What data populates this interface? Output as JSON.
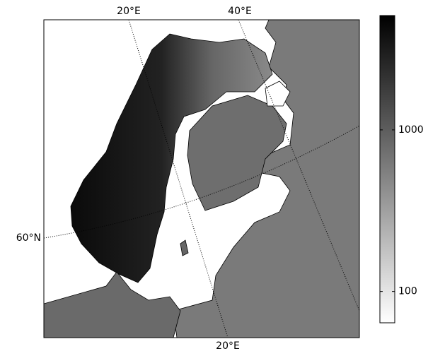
{
  "map": {
    "top_labels": [
      "20°E",
      "40°E"
    ],
    "left_labels": [
      "60°N"
    ],
    "bottom_labels": [
      "20°E"
    ]
  },
  "colorbar": {
    "log": true,
    "lim": [
      64,
      5100
    ],
    "ticks": [
      100,
      1000
    ]
  }
}
